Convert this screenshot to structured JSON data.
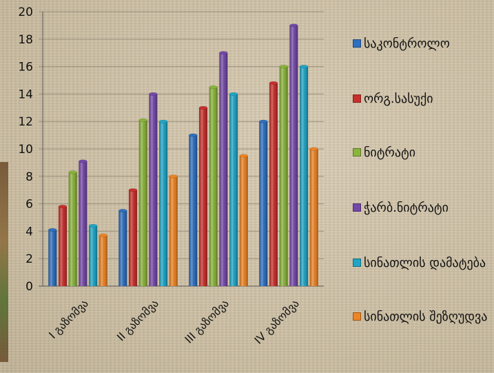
{
  "chart_data": {
    "type": "bar",
    "title": "",
    "xlabel": "",
    "ylabel": "",
    "ylim": [
      0,
      20
    ],
    "yticks": [
      0,
      2,
      4,
      6,
      8,
      10,
      12,
      14,
      16,
      18,
      20
    ],
    "grid": true,
    "legend_position": "right",
    "categories": [
      "I გაზომვა",
      "II გაზომვა",
      "III გაზომვა",
      "IV გაზომვა"
    ],
    "series": [
      {
        "name": "საკონტროლო",
        "color": "#2e6fc0",
        "values": [
          4.1,
          5.5,
          11.0,
          12.0
        ]
      },
      {
        "name": "ორგ.სასუქი",
        "color": "#c8302c",
        "values": [
          5.8,
          7.0,
          13.0,
          14.8
        ]
      },
      {
        "name": "ნიტრატი",
        "color": "#8ab43a",
        "values": [
          8.3,
          12.1,
          14.5,
          16.0
        ]
      },
      {
        "name": "ჭარბ.ნიტრატი",
        "color": "#7348a8",
        "values": [
          9.1,
          14.0,
          17.0,
          19.0
        ]
      },
      {
        "name": "სინათლის დამატება",
        "color": "#1fa5c6",
        "values": [
          4.4,
          12.0,
          14.0,
          16.0
        ]
      },
      {
        "name": "სინათლის შეზღუდვა",
        "color": "#ee8424",
        "values": [
          3.7,
          8.0,
          9.5,
          10.0
        ]
      }
    ]
  }
}
